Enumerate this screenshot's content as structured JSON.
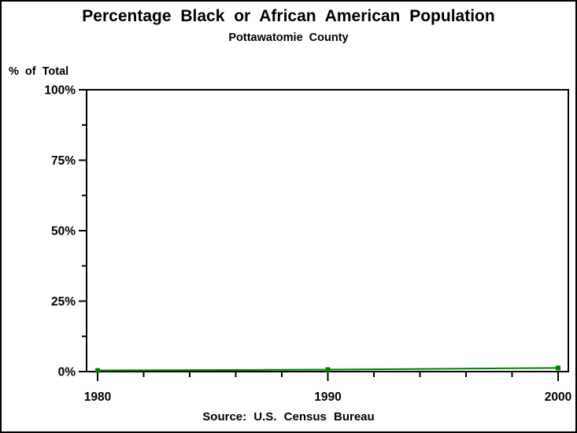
{
  "page": {
    "title": "Percentage Black or African American Population",
    "subtitle": "Pottawatomie County",
    "y_axis_title": "% of Total",
    "source_note": "Source: U.S. Census Bureau"
  },
  "chart_data": {
    "type": "line",
    "title": "Percentage Black or African American Population",
    "subtitle": "Pottawatomie County",
    "ylabel": "% of Total",
    "xlabel": "",
    "source_note": "Source: U.S. Census Bureau",
    "grid": false,
    "frame": true,
    "legend": "none",
    "line_color": "#008000",
    "marker": "square",
    "xlim": [
      1980,
      2000
    ],
    "ylim": [
      0,
      100
    ],
    "x": [
      1980,
      1990,
      2000
    ],
    "series": [
      {
        "name": "Percent Black or African American",
        "values": [
          0.4,
          0.7,
          1.3
        ]
      }
    ],
    "x_axis": {
      "major": [
        {
          "value": 1980,
          "label": "1980"
        },
        {
          "value": 1990,
          "label": "1990"
        },
        {
          "value": 2000,
          "label": "2000"
        }
      ],
      "minor": [
        1982,
        1984,
        1986,
        1988,
        1992,
        1994,
        1996,
        1998
      ]
    },
    "y_axis": {
      "major": [
        {
          "value": 0,
          "label": "0%"
        },
        {
          "value": 25,
          "label": "25%"
        },
        {
          "value": 50,
          "label": "50%"
        },
        {
          "value": 75,
          "label": "75%"
        },
        {
          "value": 100,
          "label": "100%"
        }
      ],
      "minor": [
        12.5,
        37.5,
        62.5,
        87.5
      ]
    }
  }
}
